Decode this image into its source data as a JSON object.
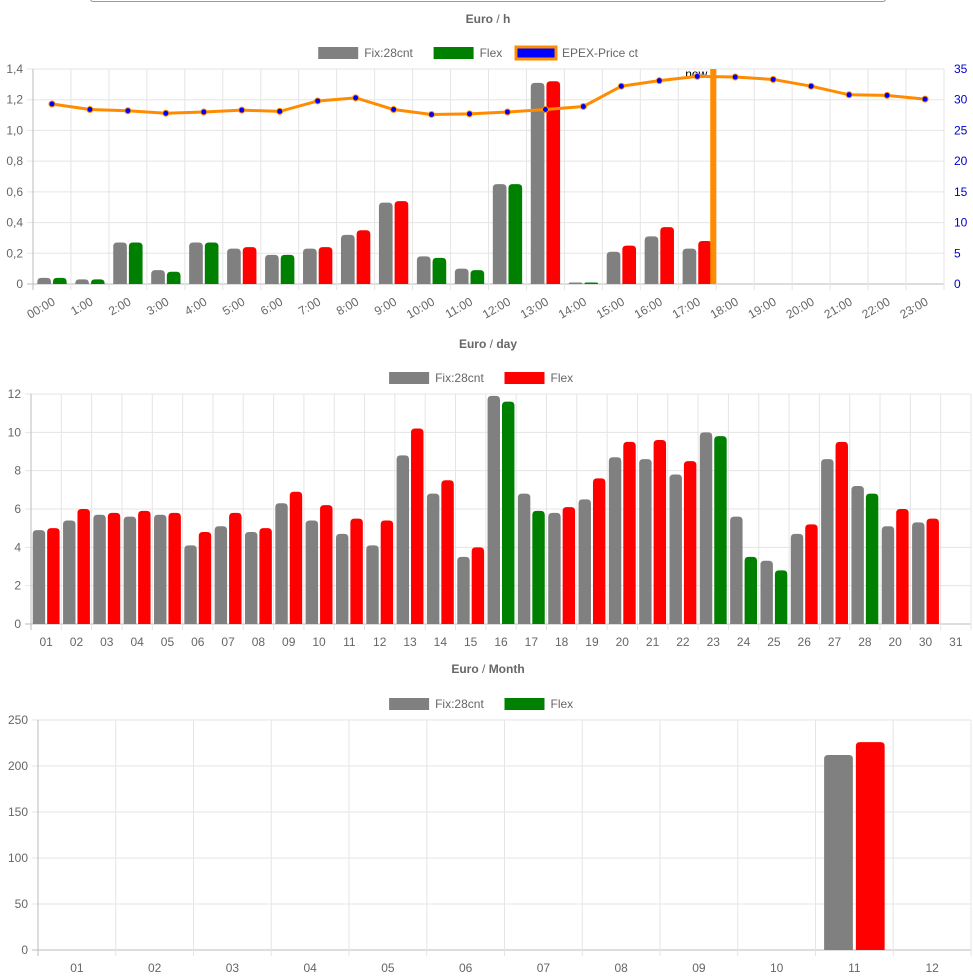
{
  "chart_data": [
    {
      "type": "bar",
      "title": "Euro / h",
      "categories": [
        "00:00",
        "1:00",
        "2:00",
        "3:00",
        "4:00",
        "5:00",
        "6:00",
        "7:00",
        "8:00",
        "9:00",
        "10:00",
        "11:00",
        "12:00",
        "13:00",
        "14:00",
        "15:00",
        "16:00",
        "17:00",
        "18:00",
        "19:00",
        "20:00",
        "21:00",
        "22:00",
        "23:00"
      ],
      "ylim": [
        0,
        1.4
      ],
      "yticks": [
        "0",
        "0,2",
        "0,4",
        "0,6",
        "0,8",
        "1,0",
        "1,2",
        "1,4"
      ],
      "y2lim": [
        0,
        35
      ],
      "y2ticks": [
        "0",
        "5",
        "10",
        "15",
        "20",
        "25",
        "30",
        "35"
      ],
      "legend_position": "top",
      "grid": true,
      "marker_label": "now",
      "marker_category": "17:00",
      "series": [
        {
          "name": "Fix:28cnt",
          "color": "#808080",
          "values": [
            0.04,
            0.03,
            0.27,
            0.09,
            0.27,
            0.23,
            0.19,
            0.23,
            0.32,
            0.53,
            0.18,
            0.1,
            0.65,
            1.31,
            0.01,
            0.21,
            0.31,
            0.23,
            null,
            null,
            null,
            null,
            null,
            null
          ]
        },
        {
          "name": "Flex",
          "color": "#008000",
          "color_alt": "#ff0000",
          "values": [
            0.04,
            0.03,
            0.27,
            0.08,
            0.27,
            0.24,
            0.19,
            0.24,
            0.35,
            0.54,
            0.17,
            0.09,
            0.65,
            1.32,
            0.01,
            0.25,
            0.37,
            0.28,
            null,
            null,
            null,
            null,
            null,
            null
          ],
          "point_colors": [
            "#008000",
            "#008000",
            "#008000",
            "#008000",
            "#008000",
            "#ff0000",
            "#008000",
            "#ff0000",
            "#ff0000",
            "#ff0000",
            "#008000",
            "#008000",
            "#008000",
            "#ff0000",
            "#008000",
            "#ff0000",
            "#ff0000",
            "#ff0000",
            null,
            null,
            null,
            null,
            null,
            null
          ]
        },
        {
          "name": "EPEX-Price ct",
          "type": "line",
          "axis": "right",
          "color": "#ff8c00",
          "point_color": "#0000ff",
          "values": [
            29.3,
            28.4,
            28.2,
            27.8,
            28.0,
            28.3,
            28.1,
            29.8,
            30.3,
            28.4,
            27.6,
            27.7,
            28.0,
            28.4,
            28.9,
            32.2,
            33.1,
            33.8,
            33.7,
            33.3,
            32.2,
            30.8,
            30.7,
            30.1
          ]
        }
      ]
    },
    {
      "type": "bar",
      "title": "Euro / day",
      "categories": [
        "01",
        "02",
        "03",
        "04",
        "05",
        "06",
        "07",
        "08",
        "09",
        "10",
        "11",
        "12",
        "13",
        "14",
        "15",
        "16",
        "17",
        "18",
        "19",
        "20",
        "21",
        "22",
        "23",
        "24",
        "25",
        "26",
        "27",
        "28",
        "20",
        "30",
        "31"
      ],
      "ylim": [
        0,
        12
      ],
      "yticks": [
        "0",
        "2",
        "4",
        "6",
        "8",
        "10",
        "12"
      ],
      "legend_position": "top",
      "grid": true,
      "series": [
        {
          "name": "Fix:28cnt",
          "color": "#808080",
          "values": [
            4.9,
            5.4,
            5.7,
            5.6,
            5.7,
            4.1,
            5.1,
            4.8,
            6.3,
            5.4,
            4.7,
            4.1,
            8.8,
            6.8,
            3.5,
            11.9,
            6.8,
            5.8,
            6.5,
            8.7,
            8.6,
            7.8,
            10.0,
            5.6,
            3.3,
            4.7,
            8.6,
            7.2,
            5.1,
            5.3,
            null
          ]
        },
        {
          "name": "Flex",
          "color": "#ff0000",
          "values": [
            5.0,
            6.0,
            5.8,
            5.9,
            5.8,
            4.8,
            5.8,
            5.0,
            6.9,
            6.2,
            5.5,
            5.4,
            10.2,
            7.5,
            4.0,
            11.6,
            5.9,
            6.1,
            7.6,
            9.5,
            9.6,
            8.5,
            9.8,
            3.5,
            2.8,
            5.2,
            9.5,
            6.8,
            6.0,
            5.5,
            null
          ],
          "point_colors": [
            "#ff0000",
            "#ff0000",
            "#ff0000",
            "#ff0000",
            "#ff0000",
            "#ff0000",
            "#ff0000",
            "#ff0000",
            "#ff0000",
            "#ff0000",
            "#ff0000",
            "#ff0000",
            "#ff0000",
            "#ff0000",
            "#ff0000",
            "#008000",
            "#008000",
            "#ff0000",
            "#ff0000",
            "#ff0000",
            "#ff0000",
            "#ff0000",
            "#008000",
            "#008000",
            "#008000",
            "#ff0000",
            "#ff0000",
            "#008000",
            "#ff0000",
            "#ff0000",
            null
          ]
        }
      ]
    },
    {
      "type": "bar",
      "title": "Euro / Month",
      "categories": [
        "01",
        "02",
        "03",
        "04",
        "05",
        "06",
        "07",
        "08",
        "09",
        "10",
        "11",
        "12"
      ],
      "ylim": [
        0,
        250
      ],
      "yticks": [
        "0",
        "50",
        "100",
        "150",
        "200",
        "250"
      ],
      "legend_position": "top",
      "grid": true,
      "series": [
        {
          "name": "Fix:28cnt",
          "color": "#808080",
          "values": [
            null,
            null,
            null,
            null,
            null,
            null,
            null,
            null,
            null,
            null,
            212,
            null
          ]
        },
        {
          "name": "Flex",
          "color": "#008000",
          "values": [
            null,
            null,
            null,
            null,
            null,
            null,
            null,
            null,
            null,
            null,
            226,
            null
          ],
          "point_colors": [
            null,
            null,
            null,
            null,
            null,
            null,
            null,
            null,
            null,
            null,
            "#ff0000",
            null
          ]
        }
      ]
    }
  ]
}
